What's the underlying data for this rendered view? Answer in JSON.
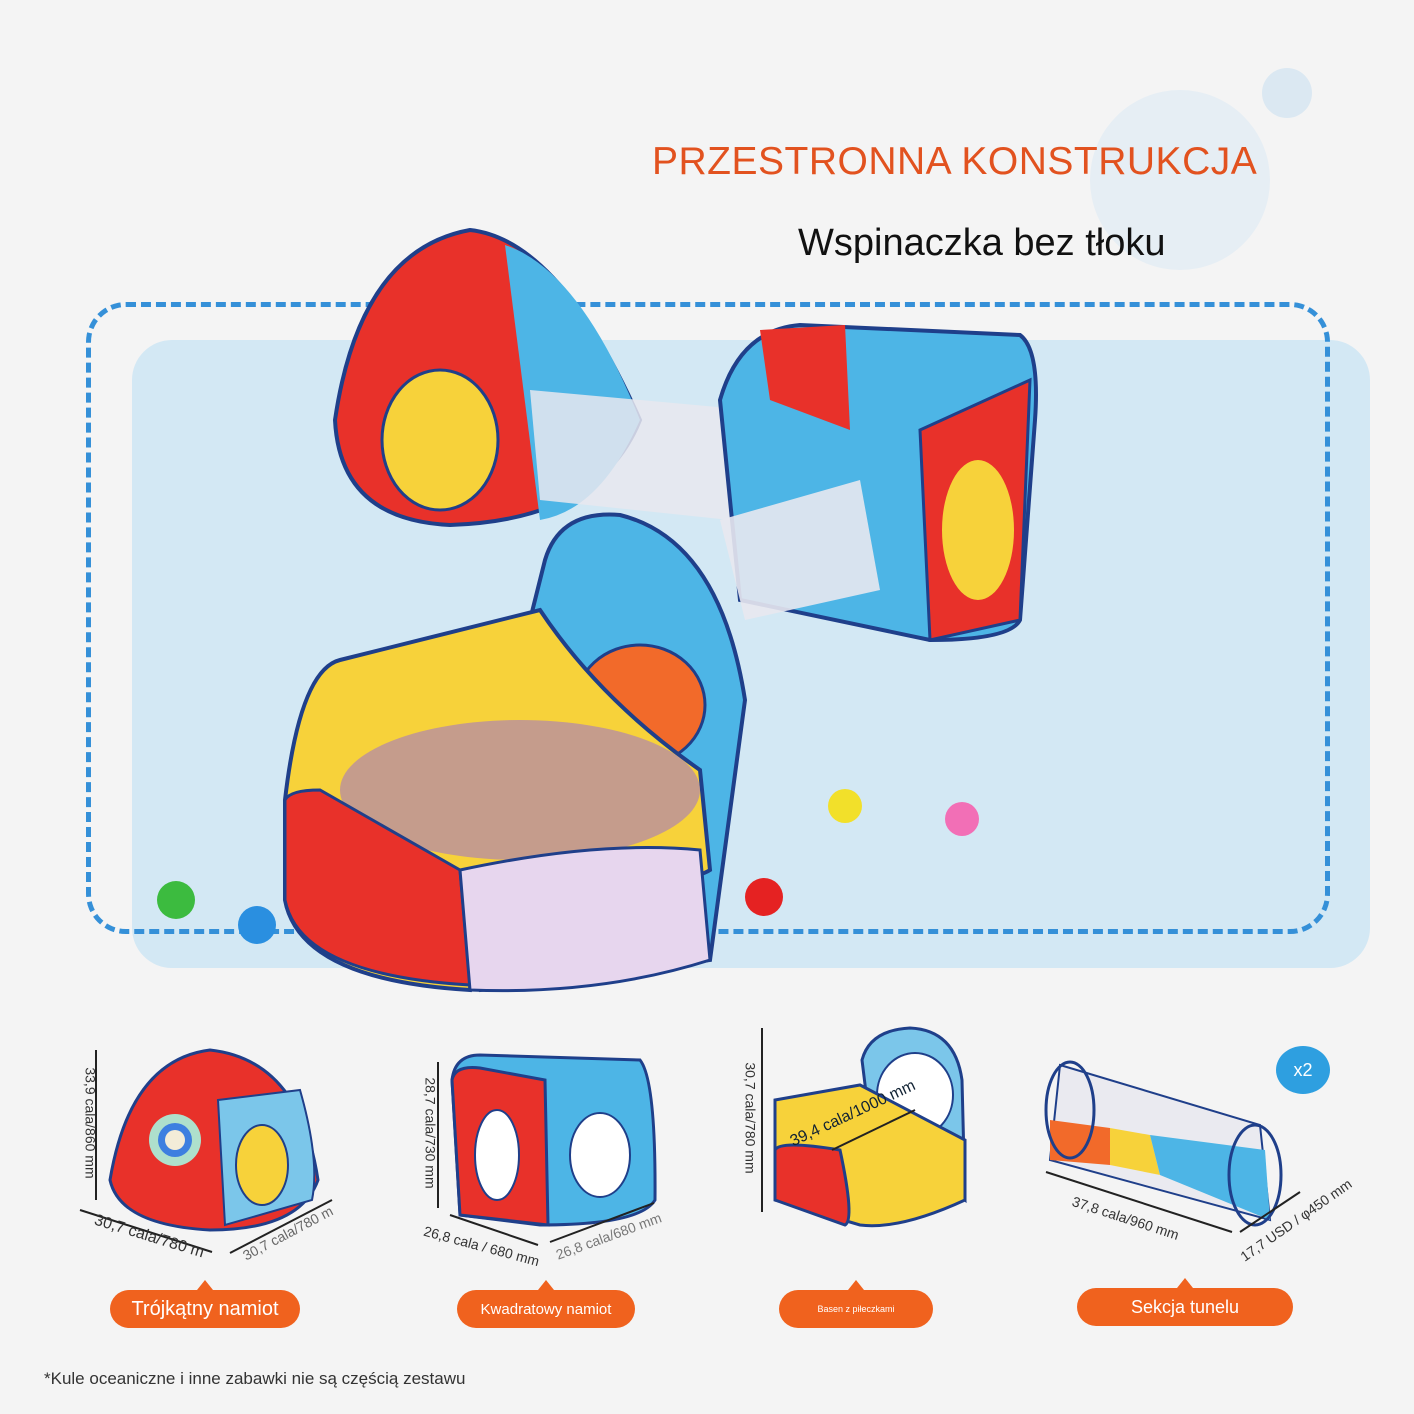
{
  "header": {
    "title": "PRZESTRONNA KONSTRUKCJA",
    "subtitle": "Wspinaczka bez tłoku"
  },
  "colors": {
    "accent": "#f0621e",
    "title": "#e2521f",
    "dash": "#3590d8",
    "panel": "#d3e8f4"
  },
  "products": [
    {
      "label": "Trójkątny namiot",
      "height": "33,9 cala/860 mm",
      "width": "30,7 cala/780 m",
      "depth": "30,7 cala/780 m"
    },
    {
      "label": "Kwadratowy namiot",
      "height": "28,7 cala/730 mm",
      "width": "26,8 cala / 680 mm",
      "depth": "26,8 cala/680 mm"
    },
    {
      "label": "Basen z piłeczkami",
      "height": "30,7 cala/780 mm",
      "diagonal": "39,4 cala/1000 mm"
    },
    {
      "label": "Sekcja tunelu",
      "length": "37,8 cala/960 mm",
      "diameter": "17,7 USD / φ450 mm",
      "badge": "x2"
    }
  ],
  "footnote": "*Kule oceaniczne i inne zabawki nie są częścią zestawu"
}
